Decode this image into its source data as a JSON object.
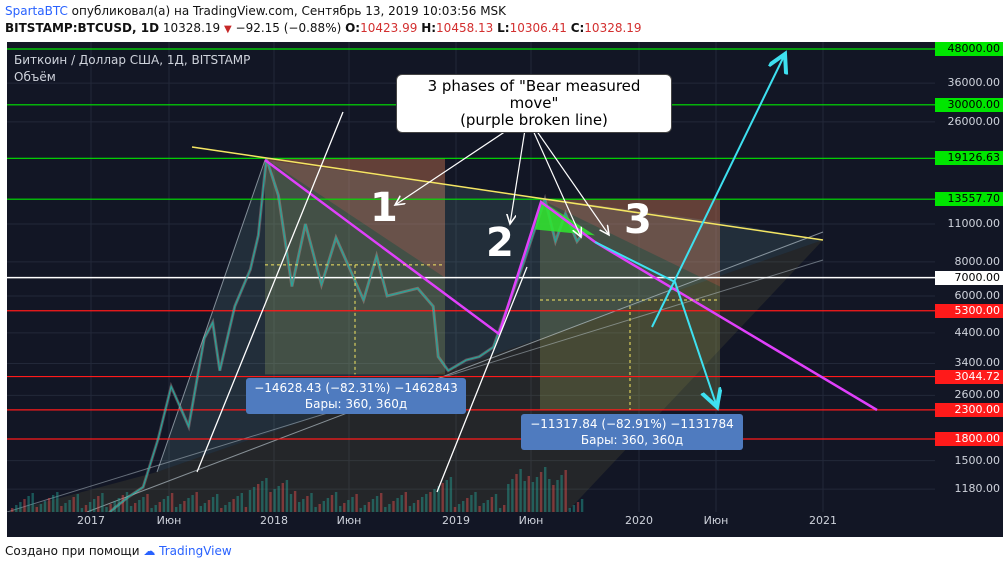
{
  "header": {
    "user": "SpartaBTC",
    "published": "опубликовал(а) на TradingView.com, Сентябрь 13, 2019 10:03:56 MSK",
    "symbol": "BITSTAMP:BTCUSD, 1D",
    "last": "10328.19",
    "change": "−92.15 (−0.88%)",
    "o_label": "O:",
    "o": "10423.99",
    "h_label": "H:",
    "h": "10458.13",
    "l_label": "L:",
    "l": "10306.41",
    "c_label": "C:",
    "c": "10328.19"
  },
  "chart_overlay": {
    "title": "Биткоин / Доллар США, 1Д, BITSTAMP",
    "volume_label": "Объём"
  },
  "annotations": {
    "callout_line1": "3 phases of \"Bear measured move\"",
    "callout_line2": "(purple broken line)",
    "phase1": "1",
    "phase2": "2",
    "phase3": "3",
    "box1_line1": "−14628.43 (−82.31%) −1462843",
    "box1_line2": "Бары: 360, 360д",
    "box2_line1": "−11317.84 (−82.91%) −1131784",
    "box2_line2": "Бары: 360, 360д"
  },
  "colors": {
    "background": "#121625",
    "green_level": "#00e600",
    "red_level": "#ff1a1a",
    "white_level": "#ffffff",
    "purple_line": "#e040fb",
    "yellow_line": "#f5e663",
    "cyan_arrow": "#3ee0f0",
    "price_up": "#26a69a",
    "price_down": "#ef5350"
  },
  "chart_data": {
    "type": "line",
    "title": "Биткоин / Доллар США, 1Д, BITSTAMP",
    "xlabel": "",
    "ylabel": "",
    "x_ticks": [
      "2017",
      "Июн",
      "2018",
      "Июн",
      "2019",
      "Июн",
      "2020",
      "Июн",
      "2021"
    ],
    "y_scale": "log",
    "y_ticks": [
      "36000.00",
      "26000.00",
      "11000.00",
      "8000.00",
      "6000.00",
      "4400.00",
      "3400.00",
      "2600.00",
      "1500.00",
      "1180.00"
    ],
    "horizontal_levels": [
      {
        "value": "48000.00",
        "color": "green"
      },
      {
        "value": "30000.00",
        "color": "green"
      },
      {
        "value": "19126.63",
        "color": "green"
      },
      {
        "value": "13557.70",
        "color": "green"
      },
      {
        "value": "7000.00",
        "color": "white"
      },
      {
        "value": "5300.00",
        "color": "red"
      },
      {
        "value": "3044.72",
        "color": "red"
      },
      {
        "value": "2300.00",
        "color": "red"
      },
      {
        "value": "1800.00",
        "color": "red"
      }
    ],
    "series": [
      {
        "values": [
          [
            "2016-12-20",
            800
          ],
          [
            "2017-02-15",
            1000
          ],
          [
            "2017-03-15",
            1100
          ],
          [
            "2017-04-15",
            1200
          ],
          [
            "2017-05-15",
            1800
          ],
          [
            "2017-06-10",
            2800
          ],
          [
            "2017-07-15",
            2000
          ],
          [
            "2017-08-15",
            4200
          ],
          [
            "2017-09-01",
            4800
          ],
          [
            "2017-09-15",
            3200
          ],
          [
            "2017-10-15",
            5500
          ],
          [
            "2017-11-15",
            7500
          ],
          [
            "2017-12-01",
            10000
          ],
          [
            "2017-12-17",
            19126
          ],
          [
            "2018-01-10",
            14000
          ],
          [
            "2018-02-06",
            6500
          ],
          [
            "2018-03-05",
            11000
          ],
          [
            "2018-04-06",
            6600
          ],
          [
            "2018-05-05",
            9800
          ],
          [
            "2018-06-29",
            5800
          ],
          [
            "2018-07-25",
            8400
          ],
          [
            "2018-08-15",
            6000
          ],
          [
            "2018-10-15",
            6400
          ],
          [
            "2018-11-15",
            5500
          ],
          [
            "2018-11-25",
            3600
          ],
          [
            "2018-12-15",
            3200
          ],
          [
            "2019-01-20",
            3500
          ],
          [
            "2019-02-15",
            3600
          ],
          [
            "2019-03-15",
            3900
          ],
          [
            "2019-04-05",
            5000
          ],
          [
            "2019-05-15",
            8000
          ],
          [
            "2019-06-26",
            13557
          ],
          [
            "2019-07-17",
            9500
          ],
          [
            "2019-08-06",
            12000
          ],
          [
            "2019-08-29",
            9500
          ],
          [
            "2019-09-13",
            10328
          ]
        ]
      }
    ]
  },
  "footer": {
    "created": "Создано при помощи",
    "brand": "TradingView"
  }
}
